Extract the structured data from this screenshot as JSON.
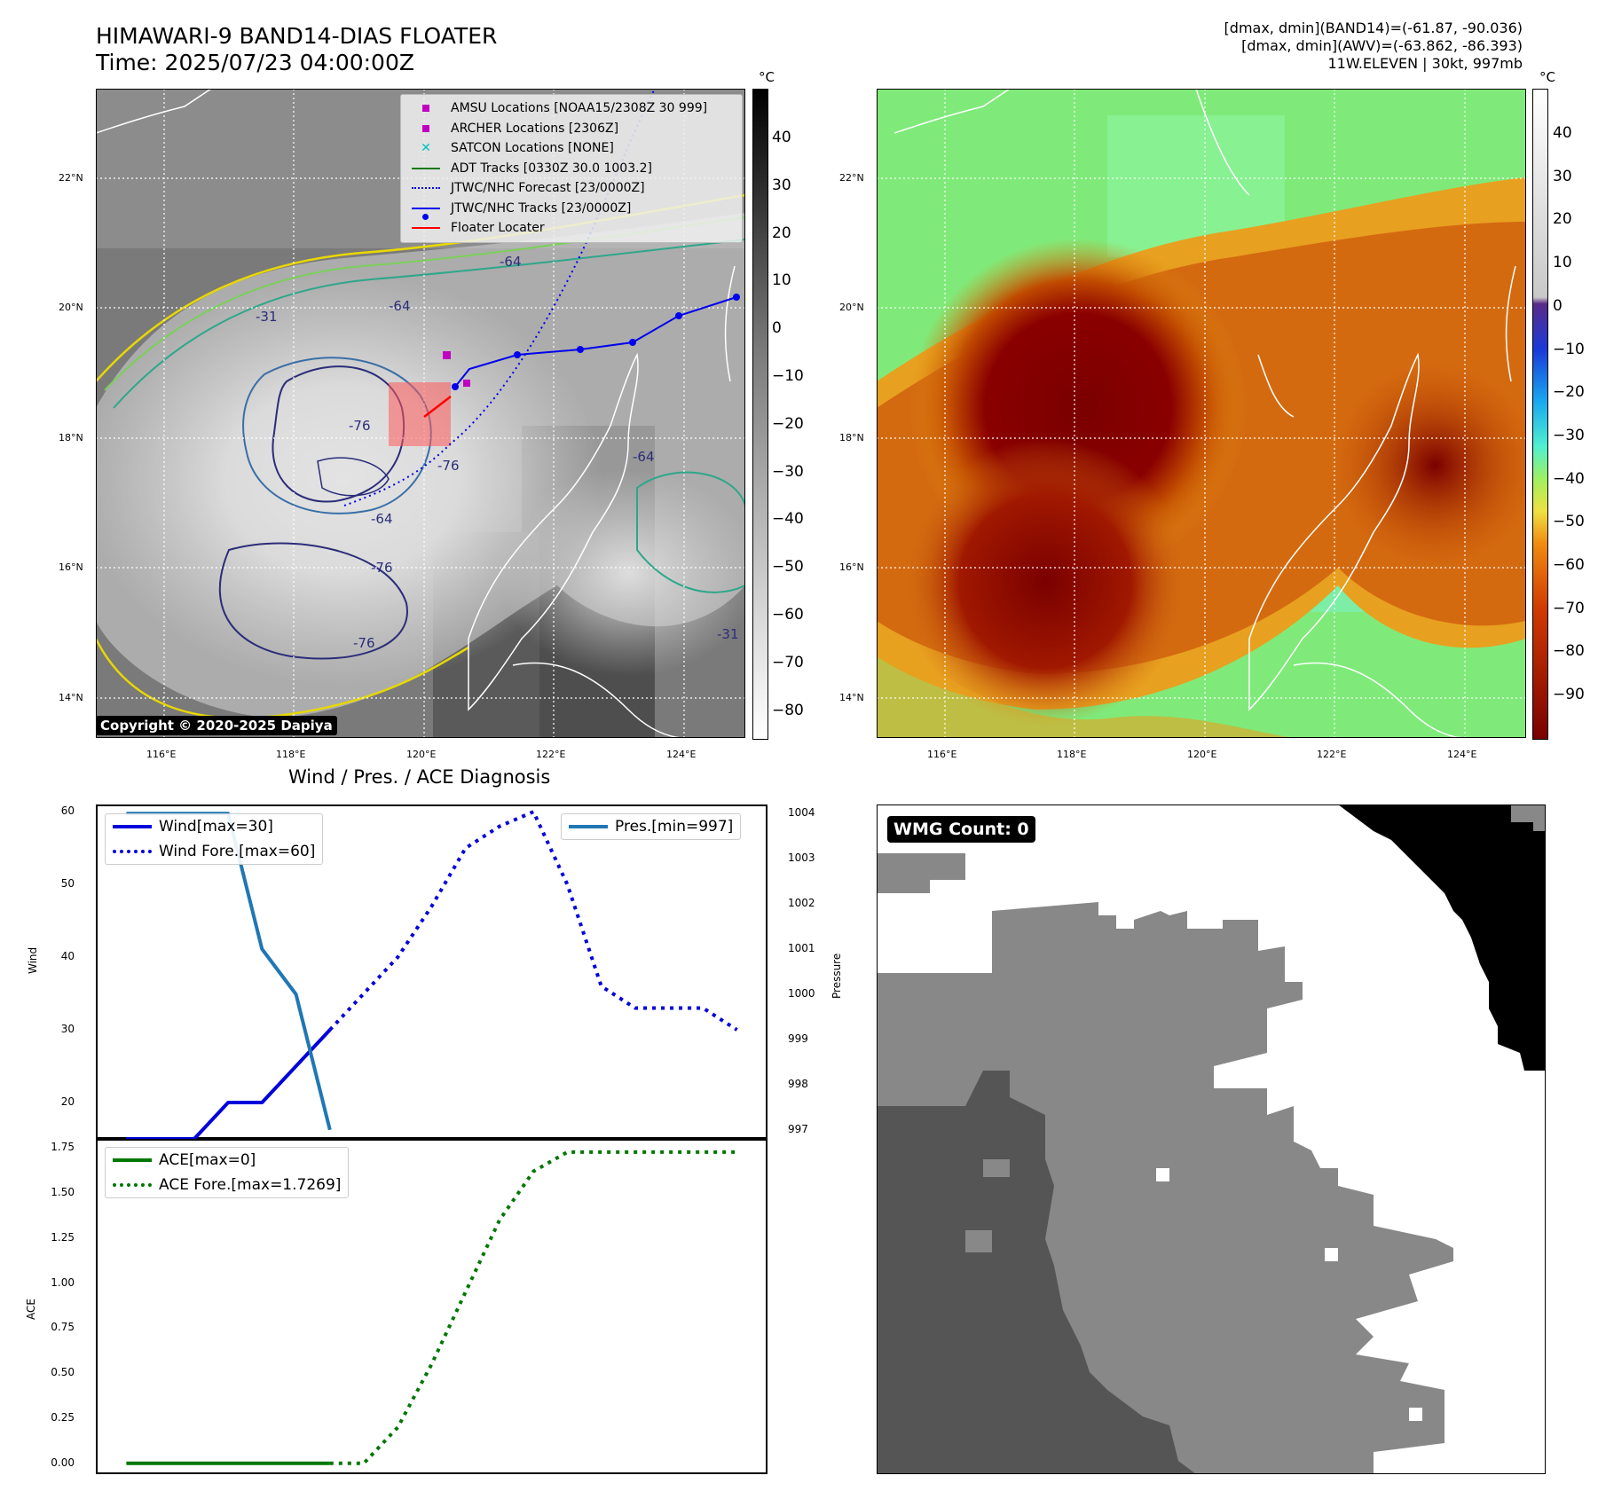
{
  "header": {
    "title_line1": "HIMAWARI-9 BAND14-DIAS FLOATER",
    "title_line2": "Time: 2025/07/23 04:00:00Z",
    "stats_line1": "[dmax, dmin](BAND14)=(-61.87, -90.036)",
    "stats_line2": "[dmax, dmin](AWV)=(-63.862, -86.393)",
    "stats_line3": "11W.ELEVEN | 30kt, 997mb"
  },
  "colorbar_unit": "°C",
  "left_colorbar_ticks": [
    "40",
    "30",
    "20",
    "10",
    "0",
    "−10",
    "−20",
    "−30",
    "−40",
    "−50",
    "−60",
    "−70",
    "−80"
  ],
  "right_colorbar_ticks": [
    "40",
    "30",
    "20",
    "10",
    "0",
    "−10",
    "−20",
    "−30",
    "−40",
    "−50",
    "−60",
    "−70",
    "−80",
    "−90"
  ],
  "map_lon_labels": [
    "116°E",
    "118°E",
    "120°E",
    "122°E",
    "124°E"
  ],
  "map_lat_labels": [
    "22°N",
    "20°N",
    "18°N",
    "16°N",
    "14°N"
  ],
  "map_legend": {
    "amsu": "AMSU Locations [NOAA15/2308Z 30 999]",
    "archer": "ARCHER Locations [2306Z]",
    "satcon": "SATCON Locations [NONE]",
    "adt": "ADT Tracks [0330Z 30.0 1003.2]",
    "forecast": "JTWC/NHC Forecast [23/0000Z]",
    "tracks": "JTWC/NHC Tracks [23/0000Z]",
    "floater": "Floater Locater"
  },
  "colors": {
    "amsu": "#c000c0",
    "archer": "#c000c0",
    "satcon": "#00c0c0",
    "adt": "#1a7a1a",
    "track": "#0000ee",
    "floater": "#ff0000",
    "wind": "#0000dd",
    "pressure": "#1f77b4",
    "ace": "#007700"
  },
  "copyright": "Copyright © 2020-2025 Dapiya",
  "wmg_label": "WMG Count: 0",
  "contour_labels": [
    "-64",
    "-64",
    "-76",
    "-76",
    "-64",
    "-76",
    "-76",
    "-31",
    "-31",
    "-64"
  ],
  "chart_data": [
    {
      "type": "line",
      "title": "Wind / Pres. / ACE Diagnosis",
      "ylabel": "Wind",
      "ylabel_right": "Pressure",
      "ylim": [
        15,
        61
      ],
      "ylim_right": [
        996.8,
        1004.2
      ],
      "yticks": [
        "60",
        "50",
        "40",
        "30",
        "20"
      ],
      "yticks_right": [
        "1004",
        "1003",
        "1002",
        "1001",
        "1000",
        "999",
        "998",
        "997"
      ],
      "legend_left": [
        "Wind[max=30]",
        "Wind Fore.[max=60]"
      ],
      "legend_right": [
        "Pres.[min=997]"
      ],
      "x": [
        0,
        1,
        2,
        3,
        4,
        5,
        6,
        7,
        8,
        9,
        10,
        11,
        12,
        13,
        14,
        15,
        16,
        17,
        18,
        19
      ],
      "series": [
        {
          "name": "Wind[max=30]",
          "style": "solid",
          "x": [
            0,
            1,
            2,
            3,
            4,
            5,
            6
          ],
          "values": [
            15,
            15,
            15,
            20,
            20,
            25,
            30
          ]
        },
        {
          "name": "Wind Fore.[max=60]",
          "style": "dotted",
          "x": [
            6,
            7,
            8,
            9,
            10,
            11,
            12,
            13,
            14,
            15,
            16,
            17,
            18
          ],
          "values": [
            30,
            35,
            40,
            47,
            55,
            58,
            60,
            50,
            36,
            33,
            33,
            33,
            30
          ]
        },
        {
          "name": "Pres.[min=997]",
          "style": "solid",
          "axis": "right",
          "x": [
            0,
            1,
            2,
            3,
            4,
            5,
            6
          ],
          "values": [
            1004,
            1004,
            1004,
            1004,
            1001,
            1000,
            997
          ]
        }
      ]
    },
    {
      "type": "line",
      "ylabel": "ACE",
      "ylim": [
        -0.06,
        1.8
      ],
      "yticks": [
        "1.75",
        "1.50",
        "1.25",
        "1.00",
        "0.75",
        "0.50",
        "0.25",
        "0.00"
      ],
      "legend": [
        "ACE[max=0]",
        "ACE Fore.[max=1.7269]"
      ],
      "series": [
        {
          "name": "ACE[max=0]",
          "style": "solid",
          "x": [
            0,
            1,
            2,
            3,
            4,
            5,
            6
          ],
          "values": [
            0,
            0,
            0,
            0,
            0,
            0,
            0
          ]
        },
        {
          "name": "ACE Fore.[max=1.7269]",
          "style": "dotted",
          "x": [
            6,
            7,
            8,
            9,
            10,
            11,
            12,
            13,
            14,
            15,
            16,
            17,
            18
          ],
          "values": [
            0,
            0,
            0.2,
            0.55,
            0.95,
            1.35,
            1.62,
            1.7269,
            1.7269,
            1.7269,
            1.7269,
            1.7269,
            1.7269
          ]
        }
      ]
    }
  ]
}
